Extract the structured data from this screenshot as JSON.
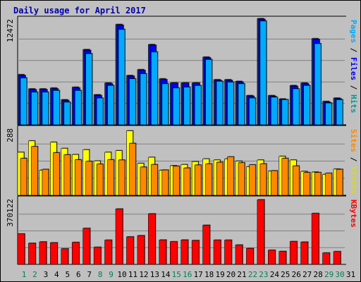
{
  "chart_data": {
    "type": "bar",
    "title": "Daily usage for April 2017",
    "x": [
      "1",
      "2",
      "3",
      "4",
      "5",
      "6",
      "7",
      "8",
      "9",
      "10",
      "11",
      "12",
      "13",
      "14",
      "15",
      "16",
      "17",
      "18",
      "19",
      "20",
      "21",
      "22",
      "23",
      "24",
      "25",
      "26",
      "27",
      "28",
      "29",
      "30",
      "31"
    ],
    "weekend_days": [
      "1",
      "2",
      "8",
      "9",
      "15",
      "16",
      "22",
      "23",
      "29",
      "30"
    ],
    "panels": [
      {
        "id": "pages-files-hits",
        "max_label": "12472",
        "ylim": [
          0,
          12472
        ],
        "grid": true,
        "legend_labels": [
          {
            "text": "Pages",
            "color": "#00aaff"
          },
          {
            "text": "Files",
            "color": "#0000ff"
          },
          {
            "text": "Hits",
            "color": "#009999"
          }
        ],
        "series": [
          {
            "name": "Hits",
            "color": "#1a2f8a",
            "values": [
              6000,
              4300,
              4300,
              4400,
              3000,
              4500,
              9000,
              3600,
              5000,
              12000,
              5900,
              6600,
              9600,
              5500,
              5000,
              5000,
              5000,
              8100,
              5400,
              5400,
              5200,
              3500,
              12700,
              3500,
              3100,
              4700,
              5000,
              10300,
              2800,
              3200
            ]
          },
          {
            "name": "Files",
            "color": "#0000ff",
            "values": [
              5900,
              4200,
              4200,
              4300,
              2900,
              4400,
              8900,
              3500,
              4900,
              11900,
              5800,
              6500,
              9500,
              5400,
              5000,
              5000,
              5000,
              8000,
              5300,
              5300,
              5100,
              3400,
              12600,
              3400,
              3000,
              4600,
              4900,
              10200,
              2700,
              3100
            ]
          },
          {
            "name": "Pages",
            "color": "#00aaff",
            "values": [
              5600,
              3900,
              3900,
              4100,
              2700,
              4100,
              8500,
              3200,
              4700,
              11400,
              5500,
              6100,
              8700,
              4900,
              4400,
              4500,
              4700,
              7800,
              5200,
              5100,
              4900,
              3200,
              12400,
              3300,
              3000,
              4300,
              4700,
              9700,
              2600,
              3000
            ]
          }
        ]
      },
      {
        "id": "visits-sites",
        "max_label": "288",
        "ylim": [
          0,
          288
        ],
        "grid": true,
        "legend_labels": [
          {
            "text": "Sites",
            "color": "#ff8800"
          },
          {
            "text": "Visits",
            "color": "#dddd00"
          }
        ],
        "series": [
          {
            "name": "Visits",
            "color": "#ffff00",
            "values": [
              189,
              239,
              110,
              233,
              206,
              179,
              200,
              151,
              189,
              196,
              283,
              140,
              167,
              110,
              130,
              135,
              148,
              160,
              155,
              160,
              150,
              125,
              155,
              106,
              171,
              155,
              105,
              102,
              92,
              115
            ]
          },
          {
            "name": "Sites",
            "color": "#ff8800",
            "values": [
              162,
              214,
              114,
              187,
              178,
              156,
              149,
              137,
              156,
              155,
              228,
              124,
              135,
              111,
              128,
              120,
              133,
              138,
              145,
              169,
              143,
              134,
              138,
              108,
              162,
              129,
              100,
              100,
              97,
              114
            ]
          }
        ]
      },
      {
        "id": "kbytes",
        "max_label": "370122",
        "ylim": [
          0,
          370122
        ],
        "grid": true,
        "legend_labels": [
          {
            "text": "KBytes",
            "color": "#ff0000"
          }
        ],
        "series": [
          {
            "name": "KBytes",
            "color": "#ff0000",
            "values": [
              176000,
              122000,
              130000,
              125000,
              90000,
              127000,
              208000,
              99000,
              140000,
              320000,
              159000,
              166000,
              292000,
              141000,
              131000,
              141000,
              138000,
              226000,
              140000,
              140000,
              112000,
              92000,
              373000,
              82000,
              75000,
              132000,
              129000,
              294000,
              66000,
              74000
            ]
          }
        ]
      }
    ]
  }
}
